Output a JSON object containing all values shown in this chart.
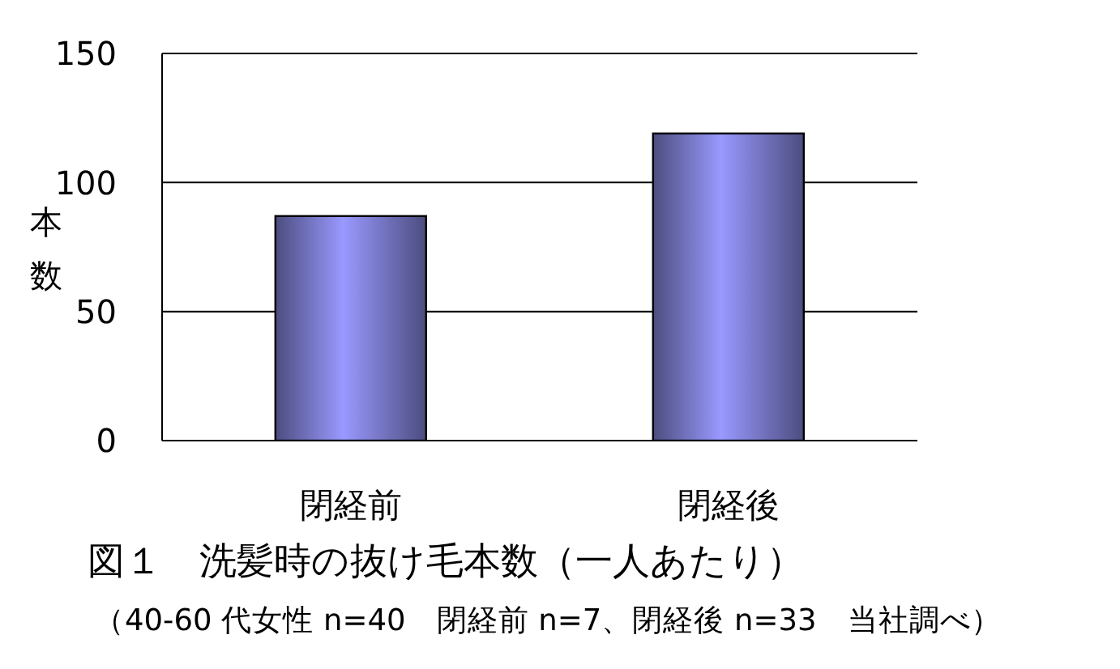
{
  "chart_data": {
    "type": "bar",
    "title": "図１　洗髪時の抜け毛本数（一人あたり）",
    "subtitle": "（40-60 代女性 n=40　閉経前 n=7、閉経後 n=33　当社調べ）",
    "ylabel": "本数",
    "categories": [
      "閉経前",
      "閉経後"
    ],
    "values": [
      87,
      119
    ],
    "color": "#9999ff",
    "ylim": [
      0,
      150
    ],
    "yticks": [
      0,
      50,
      100,
      150
    ],
    "grid": "y"
  }
}
